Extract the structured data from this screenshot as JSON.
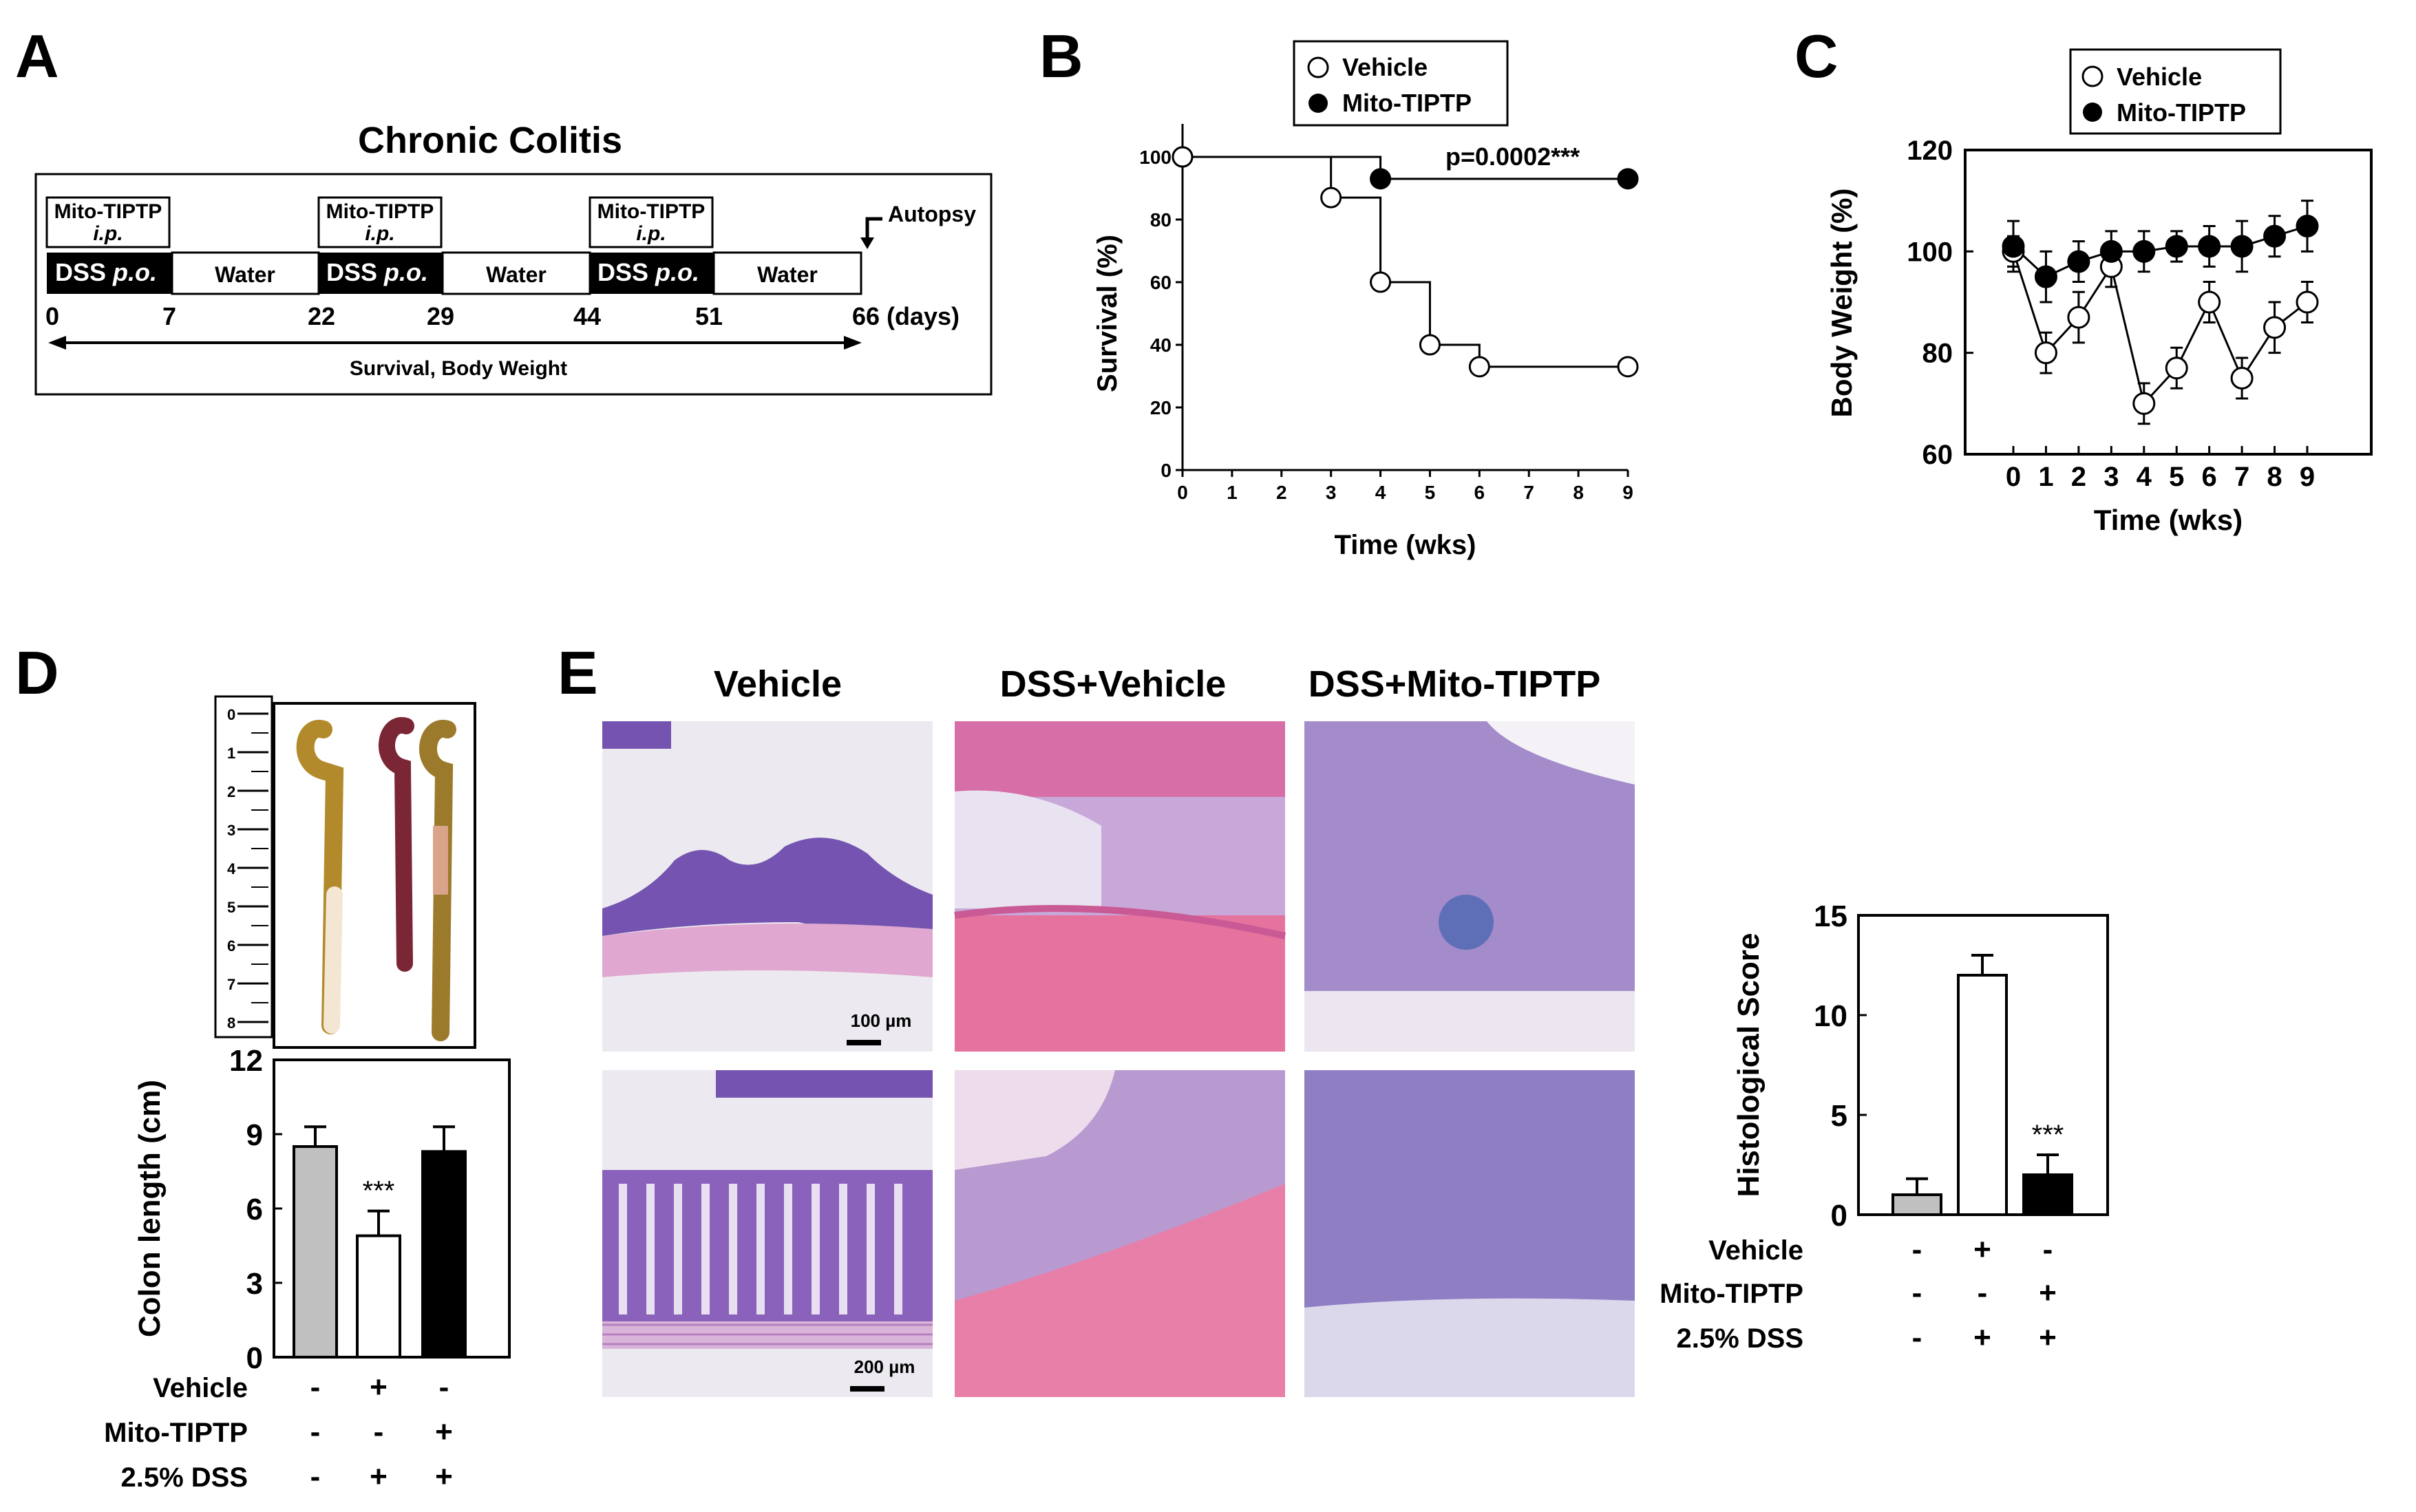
{
  "panel_letters": {
    "a": "A",
    "b": "B",
    "c": "C",
    "d": "D",
    "e": "E"
  },
  "panel_a": {
    "title": "Chronic Colitis",
    "drug_label": "Mito-TIPTP",
    "route_ip": "i.p.",
    "dss_label": "DSS",
    "route_po": "p.o.",
    "water_label": "Water",
    "autopsy_label": "Autopsy",
    "days": [
      "0",
      "7",
      "22",
      "29",
      "44",
      "51",
      "66"
    ],
    "days_unit": "(days)",
    "measure_label": "Survival, Body Weight"
  },
  "legend": {
    "vehicle": "Vehicle",
    "mito": "Mito-TIPTP"
  },
  "panel_b": {
    "pvalue": "p=0.0002***"
  },
  "panel_c": {},
  "panel_d": {
    "ruler_ticks": [
      "0",
      "1",
      "2",
      "3",
      "4",
      "5",
      "6",
      "7",
      "8"
    ]
  },
  "panel_e": {
    "col1": "Vehicle",
    "col2": "DSS+Vehicle",
    "col3": "DSS+Mito-TIPTP",
    "scale1": "100 µm",
    "scale2": "200 µm"
  },
  "treatment_table": {
    "rows": [
      {
        "label": "Vehicle",
        "signs": [
          "-",
          "+",
          "-"
        ]
      },
      {
        "label": "Mito-TIPTP",
        "signs": [
          "-",
          "-",
          "+"
        ]
      },
      {
        "label": "2.5% DSS",
        "signs": [
          "-",
          "+",
          "+"
        ]
      }
    ]
  },
  "chart_data": [
    {
      "id": "B",
      "type": "line",
      "xlabel": "Time (wks)",
      "ylabel": "Survival (%)",
      "xlim": [
        0,
        9
      ],
      "ylim": [
        0,
        100
      ],
      "xticks": [
        0,
        1,
        2,
        3,
        4,
        5,
        6,
        7,
        8,
        9
      ],
      "yticks": [
        0,
        20,
        40,
        60,
        80,
        100
      ],
      "series": [
        {
          "name": "Vehicle",
          "marker": "open-circle",
          "x": [
            0,
            3,
            4,
            5,
            6,
            9
          ],
          "y": [
            100,
            87,
            60,
            40,
            33,
            33
          ]
        },
        {
          "name": "Mito-TIPTP",
          "marker": "filled-circle",
          "x": [
            0,
            4,
            9
          ],
          "y": [
            100,
            93,
            93
          ]
        }
      ],
      "annotation": "p=0.0002***",
      "legend": "top"
    },
    {
      "id": "C",
      "type": "line",
      "xlabel": "Time (wks)",
      "ylabel": "Body Weight (%)",
      "xlim": [
        0,
        9
      ],
      "ylim": [
        60,
        120
      ],
      "xticks": [
        0,
        1,
        2,
        3,
        4,
        5,
        6,
        7,
        8,
        9
      ],
      "yticks": [
        60,
        80,
        100,
        120
      ],
      "series": [
        {
          "name": "Vehicle",
          "marker": "open-circle",
          "x": [
            0,
            1,
            2,
            3,
            4,
            5,
            6,
            7,
            8,
            9
          ],
          "y": [
            100,
            80,
            87,
            97,
            70,
            77,
            90,
            75,
            85,
            90
          ],
          "err": [
            3,
            4,
            5,
            4,
            4,
            4,
            4,
            4,
            5,
            4
          ]
        },
        {
          "name": "Mito-TIPTP",
          "marker": "filled-circle",
          "x": [
            0,
            1,
            2,
            3,
            4,
            5,
            6,
            7,
            8,
            9
          ],
          "y": [
            101,
            95,
            98,
            100,
            100,
            101,
            101,
            101,
            103,
            105
          ],
          "err": [
            5,
            5,
            4,
            4,
            4,
            3,
            4,
            5,
            4,
            5
          ]
        }
      ],
      "legend": "top"
    },
    {
      "id": "D",
      "type": "bar",
      "ylabel": "Colon length (cm)",
      "ylim": [
        0,
        12
      ],
      "yticks": [
        0,
        3,
        6,
        9,
        12
      ],
      "categories": [
        "Vehicle",
        "DSS+Vehicle",
        "DSS+Mito-TIPTP"
      ],
      "values": [
        8.5,
        4.9,
        8.3
      ],
      "err": [
        0.8,
        1.0,
        1.0
      ],
      "colors": [
        "#c0c0c0",
        "#ffffff",
        "#000000"
      ],
      "annotations": [
        "",
        "***",
        ""
      ]
    },
    {
      "id": "E",
      "type": "bar",
      "ylabel": "Histological Score",
      "ylim": [
        0,
        15
      ],
      "yticks": [
        0,
        5,
        10,
        15
      ],
      "categories": [
        "Vehicle",
        "DSS+Vehicle",
        "DSS+Mito-TIPTP"
      ],
      "values": [
        1,
        12,
        2
      ],
      "err": [
        0.8,
        1.0,
        1.0
      ],
      "colors": [
        "#c0c0c0",
        "#ffffff",
        "#000000"
      ],
      "annotations": [
        "",
        "",
        "***"
      ]
    }
  ]
}
